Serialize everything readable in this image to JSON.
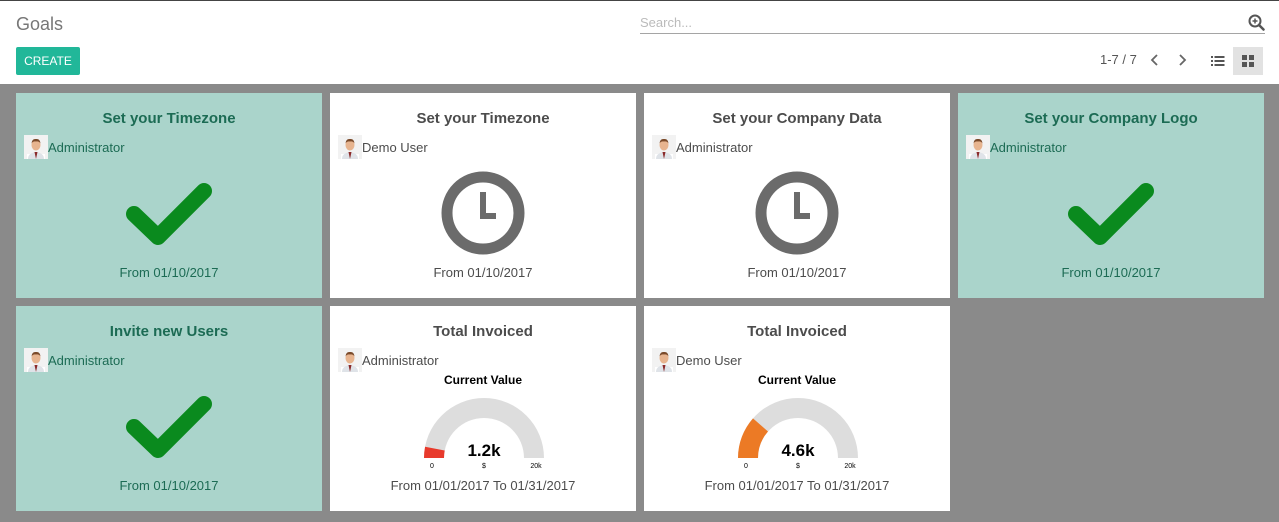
{
  "header": {
    "title": "Goals",
    "search_placeholder": "Search...",
    "create_label": "CREATE",
    "pager": "1-7 / 7"
  },
  "colors": {
    "accent": "#21b799",
    "done_bg": "#aad4cb",
    "check": "#0a8a1e",
    "clock": "#6b6b6b",
    "gauge_red": "#e83a2c",
    "gauge_orange": "#ec7a25",
    "gauge_track": "#dddddd"
  },
  "cards": [
    {
      "title": "Set your Timezone",
      "user": "Administrator",
      "status": "done",
      "icon": "checkmark-icon",
      "date": "From 01/10/2017"
    },
    {
      "title": "Set your Timezone",
      "user": "Demo User",
      "status": "pending",
      "icon": "clock-icon",
      "date": "From 01/10/2017"
    },
    {
      "title": "Set your Company Data",
      "user": "Administrator",
      "status": "pending",
      "icon": "clock-icon",
      "date": "From 01/10/2017"
    },
    {
      "title": "Set your Company Logo",
      "user": "Administrator",
      "status": "done",
      "icon": "checkmark-icon",
      "date": "From 01/10/2017"
    },
    {
      "title": "Invite new Users",
      "user": "Administrator",
      "status": "done",
      "icon": "checkmark-icon",
      "date": "From 01/10/2017"
    },
    {
      "title": "Total Invoiced",
      "user": "Administrator",
      "status": "gauge",
      "gauge": {
        "label": "Current Value",
        "value": 1200,
        "display": "1.2k",
        "min_label": "0",
        "max_label": "20k",
        "unit": "$",
        "min": 0,
        "max": 20000,
        "color": "#e83a2c"
      },
      "date": "From 01/01/2017 To 01/31/2017"
    },
    {
      "title": "Total Invoiced",
      "user": "Demo User",
      "status": "gauge",
      "gauge": {
        "label": "Current Value",
        "value": 4600,
        "display": "4.6k",
        "min_label": "0",
        "max_label": "20k",
        "unit": "$",
        "min": 0,
        "max": 20000,
        "color": "#ec7a25"
      },
      "date": "From 01/01/2017 To 01/31/2017"
    }
  ]
}
